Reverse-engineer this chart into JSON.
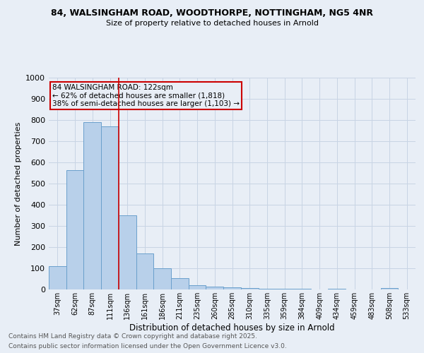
{
  "title_line1": "84, WALSINGHAM ROAD, WOODTHORPE, NOTTINGHAM, NG5 4NR",
  "title_line2": "Size of property relative to detached houses in Arnold",
  "xlabel": "Distribution of detached houses by size in Arnold",
  "ylabel": "Number of detached properties",
  "categories": [
    "37sqm",
    "62sqm",
    "87sqm",
    "111sqm",
    "136sqm",
    "161sqm",
    "186sqm",
    "211sqm",
    "235sqm",
    "260sqm",
    "285sqm",
    "310sqm",
    "335sqm",
    "359sqm",
    "384sqm",
    "409sqm",
    "434sqm",
    "459sqm",
    "483sqm",
    "508sqm",
    "533sqm"
  ],
  "values": [
    110,
    565,
    790,
    770,
    350,
    170,
    100,
    55,
    20,
    15,
    10,
    8,
    5,
    3,
    2,
    1,
    5,
    1,
    1,
    8,
    1
  ],
  "bar_color": "#b8d0ea",
  "bar_edge_color": "#6aa0cc",
  "grid_color": "#c8d4e4",
  "bg_color": "#e8eef6",
  "vline_x": 3.5,
  "vline_color": "#cc0000",
  "annotation_title": "84 WALSINGHAM ROAD: 122sqm",
  "annotation_line1": "← 62% of detached houses are smaller (1,818)",
  "annotation_line2": "38% of semi-detached houses are larger (1,103) →",
  "annotation_box_color": "#cc0000",
  "ylim": [
    0,
    1000
  ],
  "yticks": [
    0,
    100,
    200,
    300,
    400,
    500,
    600,
    700,
    800,
    900,
    1000
  ],
  "footnote1": "Contains HM Land Registry data © Crown copyright and database right 2025.",
  "footnote2": "Contains public sector information licensed under the Open Government Licence v3.0."
}
